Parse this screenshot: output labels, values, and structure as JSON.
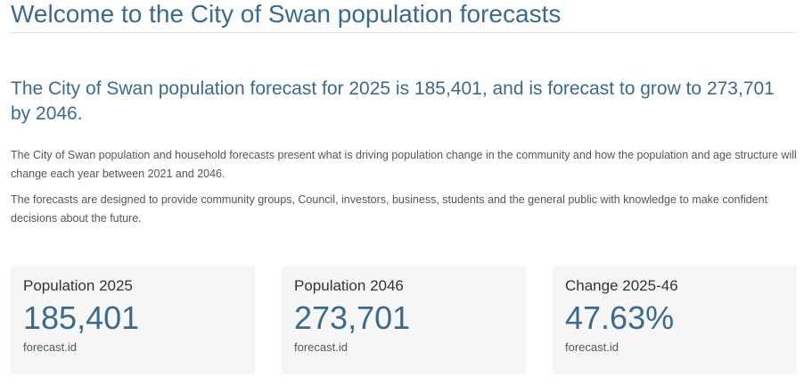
{
  "page": {
    "title": "Welcome to the City of Swan population forecasts"
  },
  "headline": "The City of Swan population forecast for 2025 is 185,401, and is forecast to grow to 273,701 by 2046.",
  "intro": [
    "The City of Swan population and household forecasts present what is driving population change in the community and how the population and age structure will change each year between 2021 and 2046.",
    "The forecasts are designed to provide community groups, Council, investors, business, students and the general public with knowledge to make confident decisions about the future."
  ],
  "cards": [
    {
      "label": "Population 2025",
      "value": "185,401",
      "source": "forecast.id"
    },
    {
      "label": "Population 2046",
      "value": "273,701",
      "source": "forecast.id"
    },
    {
      "label": "Change 2025-46",
      "value": "47.63%",
      "source": "forecast.id"
    }
  ],
  "colors": {
    "accent": "#3d6a8a",
    "body_text": "#555555",
    "card_background": "#f6f6f6"
  }
}
